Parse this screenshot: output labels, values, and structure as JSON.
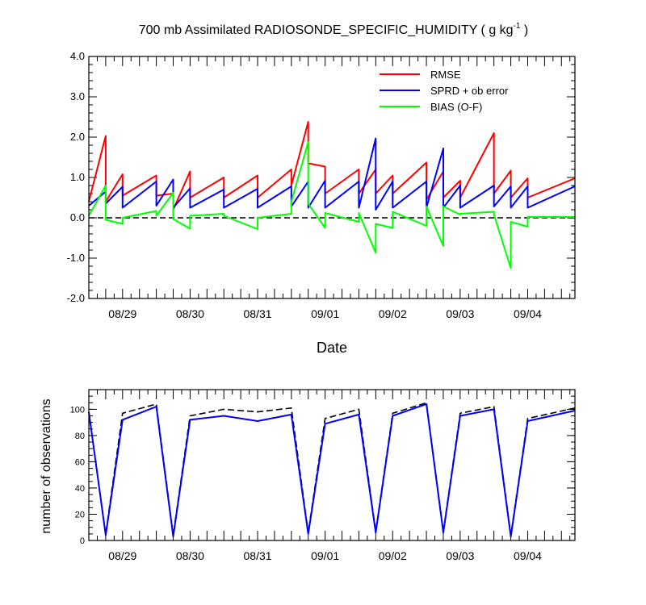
{
  "chart_data": [
    {
      "type": "line",
      "title": "700 mb Assimilated RADIOSONDE_SPECIFIC_HUMIDITY ( g kg",
      "title_superscript": "-1",
      "title_end": " )",
      "xlabel": "Date",
      "ylabel": "",
      "xlim": [
        0,
        7.2
      ],
      "ylim": [
        -2.0,
        4.0
      ],
      "yticks": [
        "-2.0",
        "-1.0",
        "0.0",
        "1.0",
        "2.0",
        "3.0",
        "4.0"
      ],
      "ytick_values": [
        -2,
        -1,
        0,
        1,
        2,
        3,
        4
      ],
      "x_categories": [
        "08/29",
        "08/30",
        "08/31",
        "09/01",
        "09/02",
        "09/03",
        "09/04"
      ],
      "x_category_positions": [
        0.5,
        1.5,
        2.5,
        3.5,
        4.5,
        5.5,
        6.5
      ],
      "zero_line": true,
      "legend": "top-right",
      "series": [
        {
          "name": "RMSE",
          "color": "#ff0000",
          "x": [
            0,
            0.25,
            0.25,
            0.5,
            0.5,
            1.0,
            1.0,
            1.25,
            1.25,
            1.5,
            1.5,
            2.0,
            2.0,
            2.5,
            2.5,
            3.0,
            3.0,
            3.25,
            3.25,
            3.5,
            3.5,
            4.0,
            4.0,
            4.25,
            4.25,
            4.5,
            4.5,
            5.0,
            5.0,
            5.25,
            5.25,
            5.5,
            5.5,
            6.0,
            6.0,
            6.25,
            6.25,
            6.5,
            6.5,
            7.2
          ],
          "values": [
            0.4,
            2.03,
            0.4,
            1.08,
            0.55,
            1.05,
            0.55,
            0.6,
            0.2,
            1.15,
            0.5,
            1.0,
            0.5,
            1.05,
            0.5,
            1.2,
            0.8,
            2.38,
            1.35,
            1.27,
            0.6,
            1.2,
            0.6,
            1.2,
            0.6,
            1.05,
            0.6,
            1.37,
            0.45,
            1.15,
            0.5,
            0.92,
            0.5,
            2.1,
            0.6,
            1.17,
            0.5,
            0.98,
            0.5,
            0.98
          ]
        },
        {
          "name": "SPRD + ob error",
          "color": "#0000ff",
          "x": [
            0,
            0.25,
            0.25,
            0.5,
            0.5,
            1.0,
            1.0,
            1.25,
            1.25,
            1.5,
            1.5,
            2.0,
            2.0,
            2.5,
            2.5,
            3.0,
            3.0,
            3.25,
            3.25,
            3.5,
            3.5,
            4.0,
            4.0,
            4.25,
            4.25,
            4.5,
            4.5,
            5.0,
            5.0,
            5.25,
            5.25,
            5.5,
            5.5,
            6.0,
            6.0,
            6.25,
            6.25,
            6.5,
            6.5,
            7.2
          ],
          "values": [
            0.3,
            0.65,
            0.35,
            0.77,
            0.25,
            0.9,
            0.3,
            0.95,
            0.25,
            0.73,
            0.25,
            0.7,
            0.25,
            0.72,
            0.25,
            0.78,
            0.28,
            0.9,
            0.25,
            0.92,
            0.25,
            0.9,
            0.25,
            1.97,
            0.2,
            0.9,
            0.25,
            0.9,
            0.25,
            1.72,
            0.25,
            0.8,
            0.25,
            0.8,
            0.28,
            0.78,
            0.25,
            0.78,
            0.25,
            0.78
          ]
        },
        {
          "name": "BIAS (O-F)",
          "color": "#00ff00",
          "x": [
            0,
            0.25,
            0.25,
            0.5,
            0.5,
            1.0,
            1.0,
            1.25,
            1.25,
            1.5,
            1.5,
            2.0,
            2.0,
            2.5,
            2.5,
            3.0,
            3.0,
            3.25,
            3.25,
            3.5,
            3.5,
            4.0,
            4.0,
            4.25,
            4.25,
            4.5,
            4.5,
            5.0,
            5.0,
            5.25,
            5.25,
            5.5,
            5.5,
            6.0,
            6.0,
            6.25,
            6.25,
            6.5,
            6.5,
            7.2
          ],
          "values": [
            0.05,
            0.8,
            -0.05,
            -0.15,
            0.0,
            0.17,
            0.05,
            0.62,
            -0.03,
            -0.27,
            0.05,
            0.1,
            0.05,
            -0.28,
            0.0,
            0.1,
            0.4,
            1.88,
            0.35,
            -0.25,
            0.12,
            -0.1,
            0.12,
            -0.87,
            -0.15,
            -0.25,
            0.15,
            -0.2,
            0.28,
            -0.7,
            0.28,
            0.08,
            0.1,
            0.15,
            0.08,
            -1.25,
            -0.1,
            -0.22,
            0.02,
            0.02
          ]
        }
      ]
    },
    {
      "type": "line",
      "title": "",
      "xlabel": "",
      "ylabel": "number of observations",
      "xlim": [
        0,
        7.2
      ],
      "ylim": [
        0,
        115
      ],
      "yticks": [
        "0",
        "20",
        "40",
        "60",
        "80",
        "100"
      ],
      "ytick_values": [
        0,
        20,
        40,
        60,
        80,
        100
      ],
      "x_categories": [
        "08/29",
        "08/30",
        "08/31",
        "09/01",
        "09/02",
        "09/03",
        "09/04"
      ],
      "x_category_positions": [
        0.5,
        1.5,
        2.5,
        3.5,
        4.5,
        5.5,
        6.5
      ],
      "series": [
        {
          "name": "",
          "color": "#000000",
          "dash": true,
          "x": [
            0,
            0.25,
            0.5,
            1.0,
            1.25,
            1.5,
            2.0,
            2.5,
            3.0,
            3.25,
            3.5,
            4.0,
            4.25,
            4.5,
            5.0,
            5.25,
            5.5,
            6.0,
            6.25,
            6.5,
            7.2
          ],
          "values": [
            98,
            5,
            97,
            104,
            4,
            95,
            100,
            98,
            101,
            6,
            93,
            100,
            7,
            97,
            105,
            7,
            97,
            102,
            4,
            93,
            101
          ]
        },
        {
          "name": "",
          "color": "#0000ff",
          "dash": false,
          "x": [
            0,
            0.25,
            0.5,
            1.0,
            1.25,
            1.5,
            2.0,
            2.5,
            3.0,
            3.25,
            3.5,
            4.0,
            4.25,
            4.5,
            5.0,
            5.25,
            5.5,
            6.0,
            6.25,
            6.5,
            7.2
          ],
          "values": [
            98,
            4,
            92,
            102,
            3,
            92,
            95,
            91,
            96,
            5,
            89,
            96,
            6,
            95,
            104,
            6,
            95,
            100,
            3,
            91,
            99
          ]
        }
      ]
    }
  ]
}
